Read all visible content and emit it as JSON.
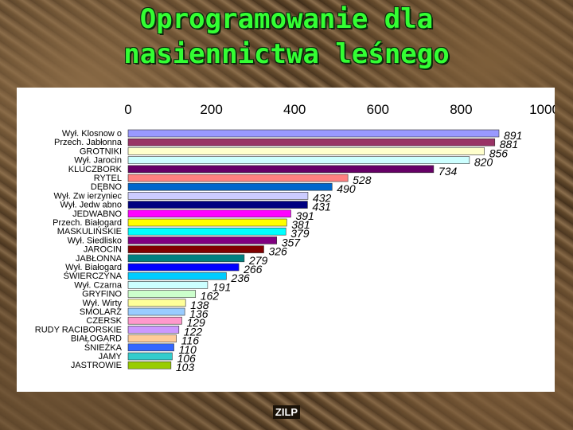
{
  "title": {
    "line1": "Oprogramowanie dla",
    "line2": "nasiennictwa leśnego"
  },
  "footer": "ZILP",
  "chart_data": {
    "type": "bar",
    "orientation": "horizontal",
    "xlim": [
      0,
      1000
    ],
    "ticks": [
      0,
      200,
      400,
      600,
      800,
      1000
    ],
    "tick_labels": [
      "0",
      "200",
      "400",
      "600",
      "800",
      "1000"
    ],
    "tick_position": "top",
    "grid": false,
    "legend": "none",
    "categories": [
      "Wył. Klosnow o",
      "Przech. Jabłonna",
      "GROTNIKI",
      "Wył. Jarocin",
      "KLUCZBORK",
      "RYTEL",
      "DĘBNO",
      "Wył. Zw ierzyniec",
      "Wył. Jedw abno",
      "JEDWABNO",
      "Przech. Białogard",
      "MASKULIŃSKIE",
      "Wył. Siedlisko",
      "JAROCIN",
      "JABŁONNA",
      "Wył. Białogard",
      "ŚWIERCZYNA",
      "Wył. Czarna",
      "GRYFINO",
      "Wył. Wirty",
      "SMOLARZ",
      "CZERSK",
      "RUDY RACIBORSKIE",
      "BIAŁOGARD",
      "ŚNIEŻKA",
      "JAMY",
      "JASTROWIE"
    ],
    "values": [
      891,
      881,
      856,
      820,
      734,
      528,
      490,
      432,
      431,
      391,
      381,
      379,
      357,
      326,
      279,
      266,
      236,
      191,
      162,
      138,
      136,
      129,
      122,
      116,
      110,
      106,
      103
    ],
    "colors": [
      "#9999ff",
      "#993366",
      "#ffffcc",
      "#ccffff",
      "#660066",
      "#ff8080",
      "#0066cc",
      "#ccccff",
      "#000080",
      "#ff00ff",
      "#ffff00",
      "#00ffff",
      "#800080",
      "#800000",
      "#008080",
      "#0000ff",
      "#00ccff",
      "#ccffff",
      "#ccffcc",
      "#ffff99",
      "#99ccff",
      "#ff99cc",
      "#cc99ff",
      "#ffcc99",
      "#3366ff",
      "#33cccc",
      "#99cc00"
    ]
  }
}
